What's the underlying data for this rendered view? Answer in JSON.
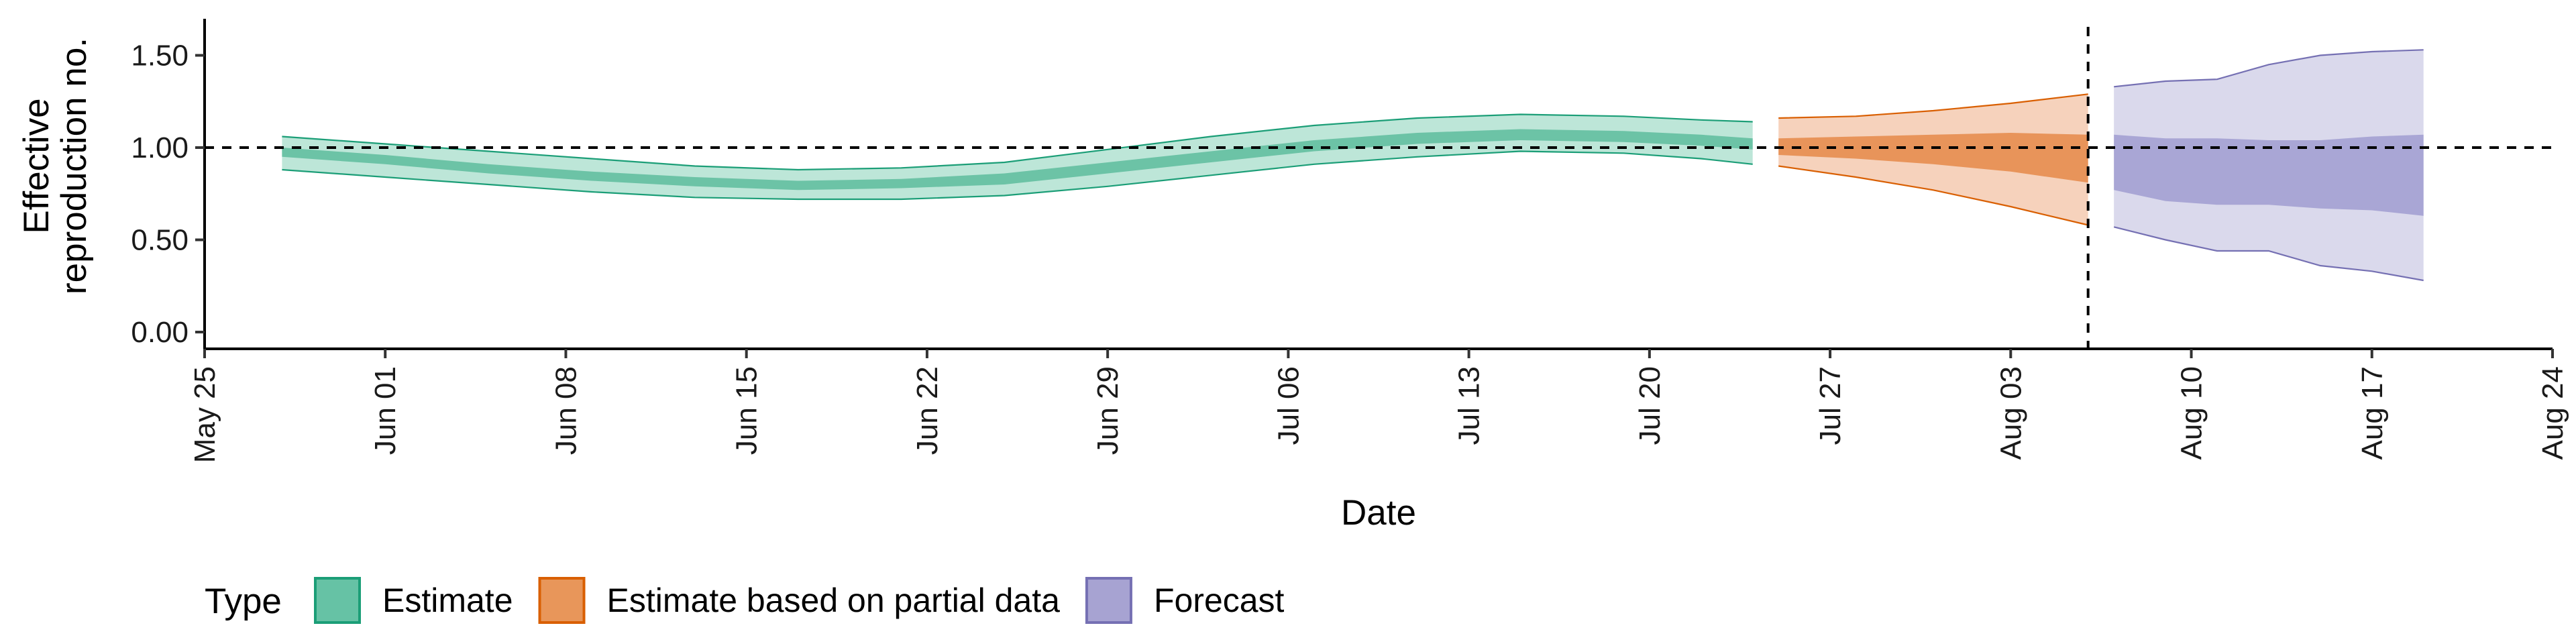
{
  "chart_data": {
    "type": "area",
    "title": "",
    "xlabel": "Date",
    "ylabel_lines": [
      "Effective",
      "reproduction no."
    ],
    "ylim": [
      0,
      1.6
    ],
    "xlim": [
      "2020-05-25",
      "2020-08-24"
    ],
    "yticks": [
      {
        "value": 0,
        "label": "0.00"
      },
      {
        "value": 0.5,
        "label": "0.50"
      },
      {
        "value": 1,
        "label": "1.00"
      },
      {
        "value": 1.5,
        "label": "1.50"
      }
    ],
    "xticks": [
      {
        "date": "2020-05-25",
        "label": "May 25"
      },
      {
        "date": "2020-06-01",
        "label": "Jun 01"
      },
      {
        "date": "2020-06-08",
        "label": "Jun 08"
      },
      {
        "date": "2020-06-15",
        "label": "Jun 15"
      },
      {
        "date": "2020-06-22",
        "label": "Jun 22"
      },
      {
        "date": "2020-06-29",
        "label": "Jun 29"
      },
      {
        "date": "2020-07-06",
        "label": "Jul 06"
      },
      {
        "date": "2020-07-13",
        "label": "Jul 13"
      },
      {
        "date": "2020-07-20",
        "label": "Jul 20"
      },
      {
        "date": "2020-07-27",
        "label": "Jul 27"
      },
      {
        "date": "2020-08-03",
        "label": "Aug 03"
      },
      {
        "date": "2020-08-10",
        "label": "Aug 10"
      },
      {
        "date": "2020-08-17",
        "label": "Aug 17"
      },
      {
        "date": "2020-08-24",
        "label": "Aug 24"
      }
    ],
    "reference_lines": {
      "horizontal_y": 1.0,
      "vertical_date": "2020-08-06"
    },
    "grid": false,
    "legend": {
      "title": "Type",
      "position": "bottom-left",
      "entries": [
        {
          "label": "Estimate",
          "fill": "#66c2a5",
          "stroke": "#1b9e77"
        },
        {
          "label": "Estimate based on partial data",
          "fill": "#e8965a",
          "stroke": "#d95f02"
        },
        {
          "label": "Forecast",
          "fill": "#a7a3d2",
          "stroke": "#7570b3"
        }
      ]
    },
    "series": [
      {
        "name": "Estimate",
        "outer_fill": "#bde6d8",
        "inner_fill": "#6cc3a6",
        "stroke": "#1b9e77",
        "points": [
          {
            "date": "2020-05-28",
            "lo90": 0.88,
            "lo50": 0.95,
            "hi50": 1.0,
            "hi90": 1.06
          },
          {
            "date": "2020-06-01",
            "lo90": 0.84,
            "lo50": 0.91,
            "hi50": 0.96,
            "hi90": 1.02
          },
          {
            "date": "2020-06-05",
            "lo90": 0.8,
            "lo50": 0.86,
            "hi50": 0.91,
            "hi90": 0.98
          },
          {
            "date": "2020-06-09",
            "lo90": 0.76,
            "lo50": 0.82,
            "hi50": 0.87,
            "hi90": 0.94
          },
          {
            "date": "2020-06-13",
            "lo90": 0.73,
            "lo50": 0.79,
            "hi50": 0.84,
            "hi90": 0.9
          },
          {
            "date": "2020-06-17",
            "lo90": 0.72,
            "lo50": 0.77,
            "hi50": 0.82,
            "hi90": 0.88
          },
          {
            "date": "2020-06-21",
            "lo90": 0.72,
            "lo50": 0.78,
            "hi50": 0.83,
            "hi90": 0.89
          },
          {
            "date": "2020-06-25",
            "lo90": 0.74,
            "lo50": 0.8,
            "hi50": 0.86,
            "hi90": 0.92
          },
          {
            "date": "2020-06-29",
            "lo90": 0.79,
            "lo50": 0.86,
            "hi50": 0.92,
            "hi90": 0.99
          },
          {
            "date": "2020-07-03",
            "lo90": 0.85,
            "lo50": 0.92,
            "hi50": 0.98,
            "hi90": 1.06
          },
          {
            "date": "2020-07-07",
            "lo90": 0.91,
            "lo50": 0.98,
            "hi50": 1.04,
            "hi90": 1.12
          },
          {
            "date": "2020-07-11",
            "lo90": 0.95,
            "lo50": 1.02,
            "hi50": 1.08,
            "hi90": 1.16
          },
          {
            "date": "2020-07-15",
            "lo90": 0.98,
            "lo50": 1.04,
            "hi50": 1.1,
            "hi90": 1.18
          },
          {
            "date": "2020-07-19",
            "lo90": 0.97,
            "lo50": 1.03,
            "hi50": 1.09,
            "hi90": 1.17
          },
          {
            "date": "2020-07-22",
            "lo90": 0.94,
            "lo50": 1.01,
            "hi50": 1.07,
            "hi90": 1.15
          },
          {
            "date": "2020-07-24",
            "lo90": 0.91,
            "lo50": 0.99,
            "hi50": 1.05,
            "hi90": 1.14
          }
        ]
      },
      {
        "name": "Estimate based on partial data",
        "outer_fill": "#f6d2bc",
        "inner_fill": "#e8945a",
        "stroke": "#d95f02",
        "points": [
          {
            "date": "2020-07-25",
            "lo90": 0.9,
            "lo50": 0.96,
            "hi50": 1.05,
            "hi90": 1.16
          },
          {
            "date": "2020-07-28",
            "lo90": 0.84,
            "lo50": 0.94,
            "hi50": 1.06,
            "hi90": 1.17
          },
          {
            "date": "2020-07-31",
            "lo90": 0.77,
            "lo50": 0.91,
            "hi50": 1.07,
            "hi90": 1.2
          },
          {
            "date": "2020-08-03",
            "lo90": 0.68,
            "lo50": 0.87,
            "hi50": 1.08,
            "hi90": 1.24
          },
          {
            "date": "2020-08-06",
            "lo90": 0.58,
            "lo50": 0.81,
            "hi50": 1.07,
            "hi90": 1.29
          }
        ]
      },
      {
        "name": "Forecast",
        "outer_fill": "#dad9ec",
        "inner_fill": "#a9a6d5",
        "stroke": "#7570b3",
        "points": [
          {
            "date": "2020-08-07",
            "lo90": 0.57,
            "lo50": 0.77,
            "hi50": 1.07,
            "hi90": 1.33
          },
          {
            "date": "2020-08-09",
            "lo90": 0.5,
            "lo50": 0.71,
            "hi50": 1.05,
            "hi90": 1.36
          },
          {
            "date": "2020-08-11",
            "lo90": 0.44,
            "lo50": 0.69,
            "hi50": 1.05,
            "hi90": 1.37
          },
          {
            "date": "2020-08-13",
            "lo90": 0.44,
            "lo50": 0.69,
            "hi50": 1.04,
            "hi90": 1.45
          },
          {
            "date": "2020-08-15",
            "lo90": 0.36,
            "lo50": 0.67,
            "hi50": 1.04,
            "hi90": 1.5
          },
          {
            "date": "2020-08-17",
            "lo90": 0.33,
            "lo50": 0.66,
            "hi50": 1.06,
            "hi90": 1.52
          },
          {
            "date": "2020-08-19",
            "lo90": 0.28,
            "lo50": 0.63,
            "hi50": 1.07,
            "hi90": 1.53
          }
        ]
      }
    ]
  }
}
